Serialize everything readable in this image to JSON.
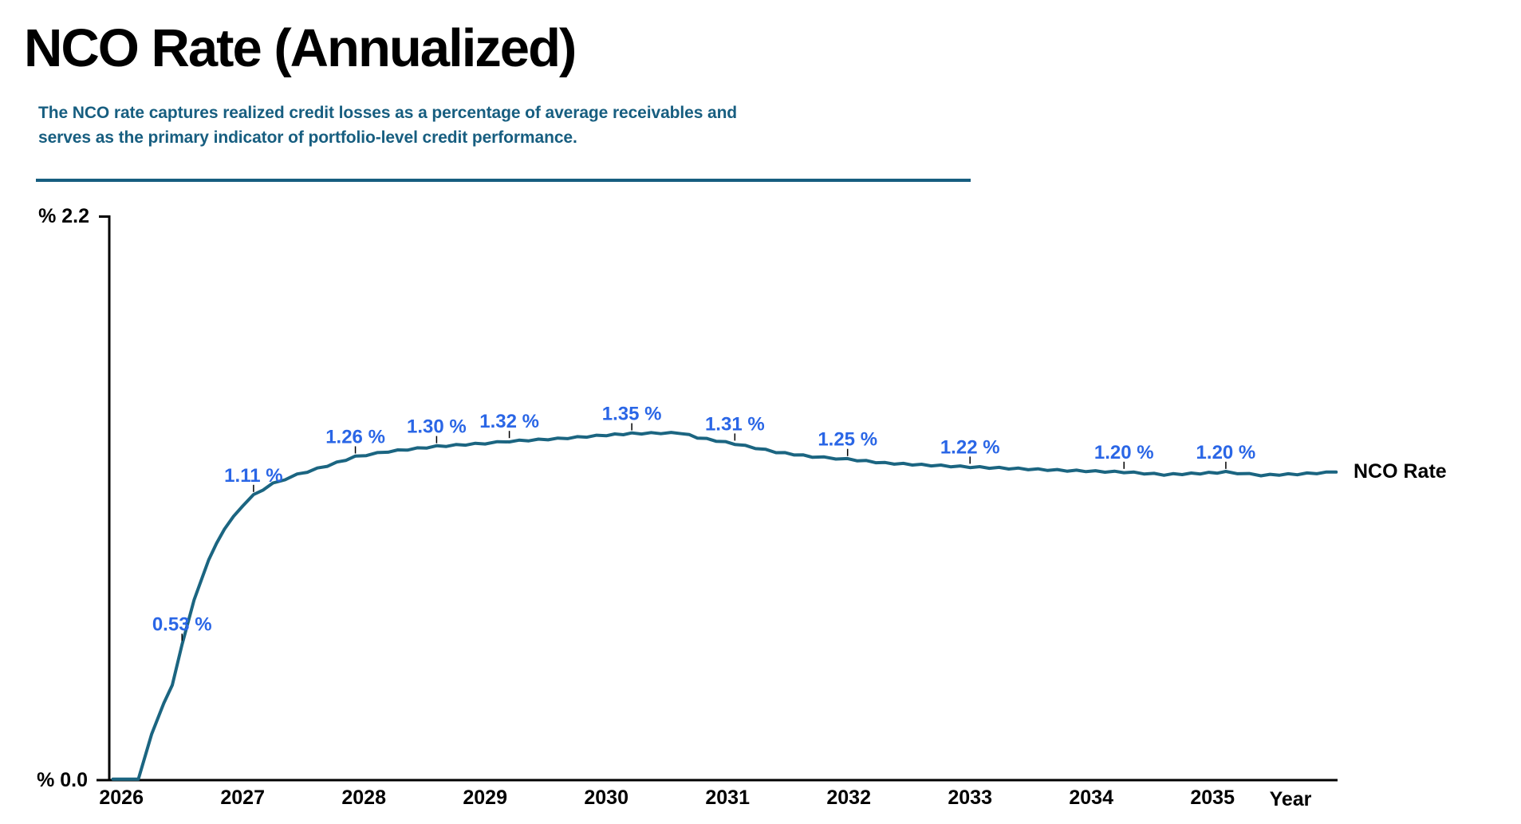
{
  "header": {
    "title": "NCO Rate (Annualized)",
    "subtitle_line1": "The NCO rate captures realized credit losses as a percentage of average receivables and",
    "subtitle_line2": "serves as the primary indicator of portfolio-level credit performance."
  },
  "colors": {
    "line": "#1b6581",
    "data_label": "#2a66e6",
    "subtitle": "#175e80",
    "axis": "#000000"
  },
  "chart_data": {
    "type": "line",
    "title": "NCO Rate (Annualized)",
    "xlabel": "Year",
    "ylabel": "%",
    "ylim": [
      0.0,
      2.2
    ],
    "y_axis_labels": {
      "top": "% 2.2",
      "bottom": "% 0.0"
    },
    "x_ticks": [
      "2026",
      "2027",
      "2028",
      "2029",
      "2030",
      "2031",
      "2032",
      "2033",
      "2034",
      "2035"
    ],
    "legend": {
      "position": "right-of-line-end",
      "entries": [
        "NCO Rate"
      ]
    },
    "grid": false,
    "series": [
      {
        "name": "NCO Rate",
        "annotated_points": [
          {
            "label": "0.53 %",
            "year": 2026.5,
            "value": 0.53
          },
          {
            "label": "1.11 %",
            "year": 2027.09,
            "value": 1.11
          },
          {
            "label": "1.26 %",
            "year": 2027.93,
            "value": 1.26
          },
          {
            "label": "1.30 %",
            "year": 2028.6,
            "value": 1.3
          },
          {
            "label": "1.32 %",
            "year": 2029.2,
            "value": 1.32
          },
          {
            "label": "1.35 %",
            "year": 2030.21,
            "value": 1.35
          },
          {
            "label": "1.31 %",
            "year": 2031.06,
            "value": 1.31
          },
          {
            "label": "1.25 %",
            "year": 2031.99,
            "value": 1.25
          },
          {
            "label": "1.22 %",
            "year": 2033.0,
            "value": 1.22
          },
          {
            "label": "1.20 %",
            "year": 2034.27,
            "value": 1.2
          },
          {
            "label": "1.20 %",
            "year": 2035.11,
            "value": 1.2
          }
        ],
        "shape_anchors": [
          [
            2025.93,
            0.004
          ],
          [
            2026.14,
            0.004
          ],
          [
            2026.25,
            0.18
          ],
          [
            2026.35,
            0.3
          ],
          [
            2026.42,
            0.37
          ],
          [
            2026.5,
            0.53
          ],
          [
            2026.6,
            0.7
          ],
          [
            2026.72,
            0.86
          ],
          [
            2026.85,
            0.98
          ],
          [
            2027.0,
            1.07
          ],
          [
            2027.09,
            1.11
          ],
          [
            2027.25,
            1.155
          ],
          [
            2027.45,
            1.19
          ],
          [
            2027.7,
            1.225
          ],
          [
            2027.93,
            1.26
          ],
          [
            2028.2,
            1.28
          ],
          [
            2028.6,
            1.3
          ],
          [
            2029.0,
            1.312
          ],
          [
            2029.2,
            1.32
          ],
          [
            2029.6,
            1.33
          ],
          [
            2030.0,
            1.344
          ],
          [
            2030.21,
            1.35
          ],
          [
            2030.45,
            1.352
          ],
          [
            2030.62,
            1.352
          ],
          [
            2030.75,
            1.335
          ],
          [
            2031.06,
            1.31
          ],
          [
            2031.4,
            1.278
          ],
          [
            2031.7,
            1.26
          ],
          [
            2031.99,
            1.25
          ],
          [
            2032.3,
            1.235
          ],
          [
            2032.6,
            1.228
          ],
          [
            2033.0,
            1.22
          ],
          [
            2033.4,
            1.213
          ],
          [
            2033.8,
            1.206
          ],
          [
            2034.27,
            1.2
          ],
          [
            2034.6,
            1.19
          ],
          [
            2034.9,
            1.195
          ],
          [
            2035.11,
            1.2
          ],
          [
            2035.4,
            1.188
          ],
          [
            2035.7,
            1.192
          ],
          [
            2036.02,
            1.2
          ]
        ]
      }
    ]
  }
}
